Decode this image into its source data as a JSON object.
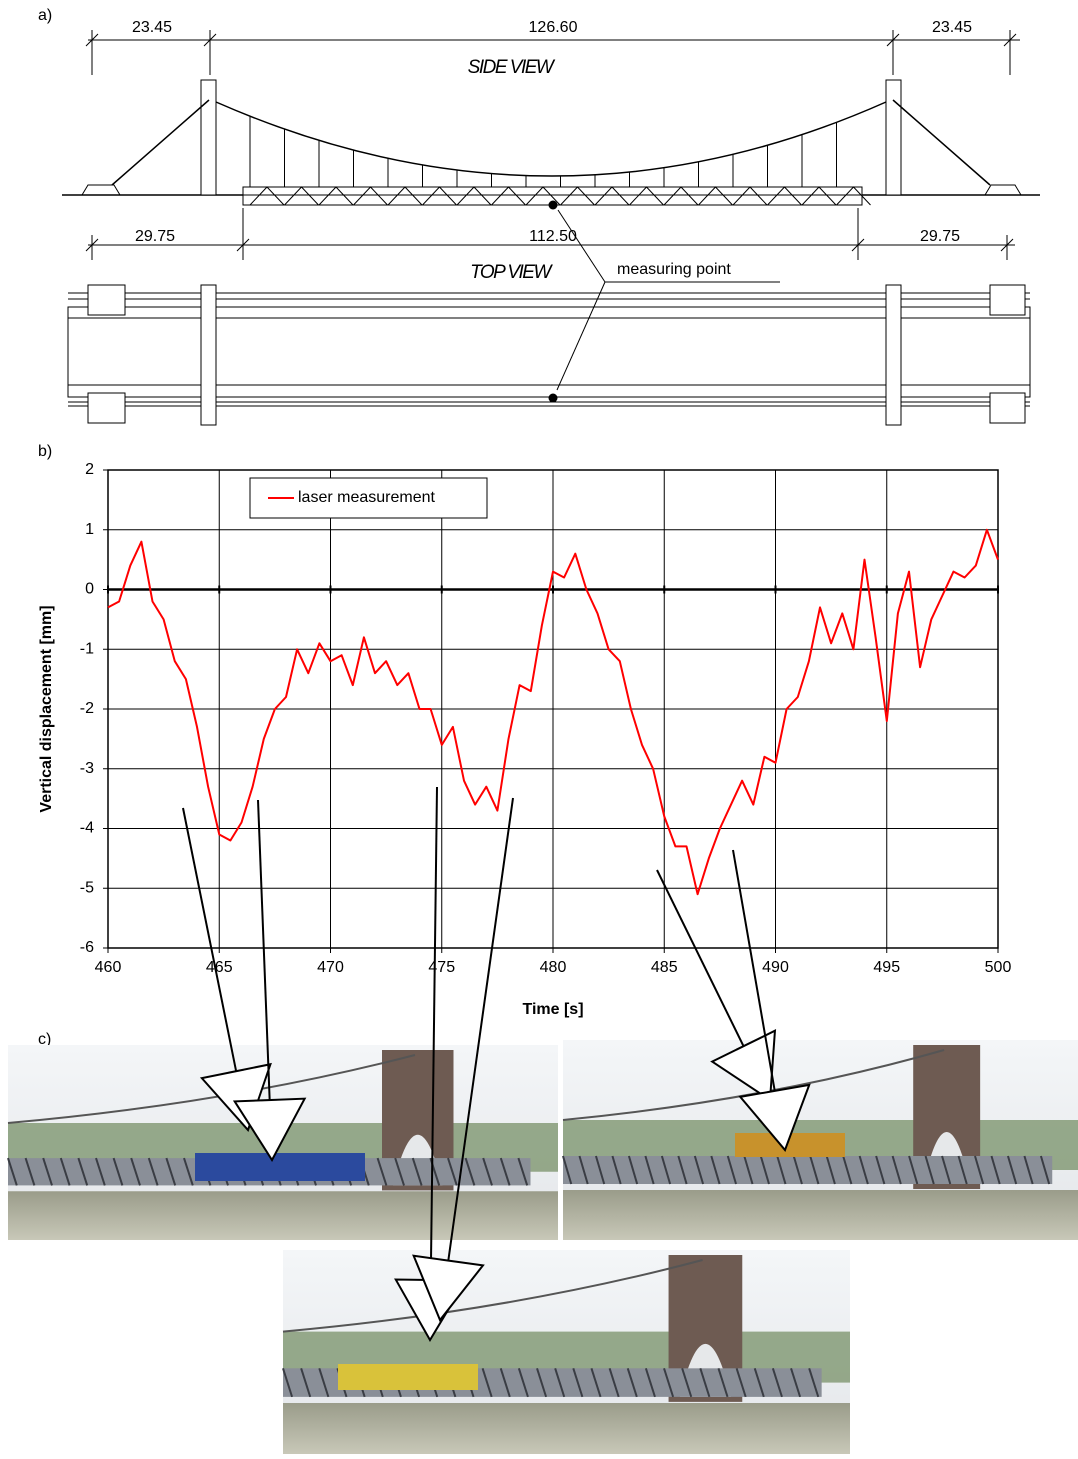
{
  "panel_a": {
    "label": "a)",
    "dimensions_top": [
      "23.45",
      "126.60",
      "23.45"
    ],
    "side_view": "SIDE VIEW",
    "dimensions_deck": [
      "29.75",
      "112.50",
      "29.75"
    ],
    "top_view": "TOP VIEW",
    "annotation": "measuring point"
  },
  "chart_data": {
    "type": "line",
    "label": "b)",
    "xlabel": "Time [s]",
    "ylabel": "Vertical displacement [mm]",
    "xlim": [
      460,
      500
    ],
    "ylim": [
      -6,
      2
    ],
    "xticks": [
      460,
      465,
      470,
      475,
      480,
      485,
      490,
      495,
      500
    ],
    "yticks": [
      -6,
      -5,
      -4,
      -3,
      -2,
      -1,
      0,
      1,
      2
    ],
    "grid": true,
    "legend": "upper-left",
    "series": [
      {
        "name": "laser measurement",
        "color": "#ff0000",
        "x": [
          460,
          460.5,
          461,
          461.5,
          462,
          462.5,
          463,
          463.5,
          464,
          464.5,
          465,
          465.5,
          466,
          466.5,
          467,
          467.5,
          468,
          468.5,
          469,
          469.5,
          470,
          470.5,
          471,
          471.5,
          472,
          472.5,
          473,
          473.5,
          474,
          474.5,
          475,
          475.5,
          476,
          476.5,
          477,
          477.5,
          478,
          478.5,
          479,
          479.5,
          480,
          480.5,
          481,
          481.5,
          482,
          482.5,
          483,
          483.5,
          484,
          484.5,
          485,
          485.5,
          486,
          486.5,
          487,
          487.5,
          488,
          488.5,
          489,
          489.5,
          490,
          490.5,
          491,
          491.5,
          492,
          492.5,
          493,
          493.5,
          494,
          494.5,
          495,
          495.5,
          496,
          496.5,
          497,
          497.5,
          498,
          498.5,
          499,
          499.5,
          500
        ],
        "values": [
          -0.3,
          -0.2,
          0.4,
          0.8,
          -0.2,
          -0.5,
          -1.2,
          -1.5,
          -2.3,
          -3.3,
          -4.1,
          -4.2,
          -3.9,
          -3.3,
          -2.5,
          -2.0,
          -1.8,
          -1.0,
          -1.4,
          -0.9,
          -1.2,
          -1.1,
          -1.6,
          -0.8,
          -1.4,
          -1.2,
          -1.6,
          -1.4,
          -2.0,
          -2.0,
          -2.6,
          -2.3,
          -3.2,
          -3.6,
          -3.3,
          -3.7,
          -2.5,
          -1.6,
          -1.7,
          -0.6,
          0.3,
          0.2,
          0.6,
          0.0,
          -0.4,
          -1.0,
          -1.2,
          -2.0,
          -2.6,
          -3.0,
          -3.8,
          -4.3,
          -4.3,
          -5.1,
          -4.5,
          -4.0,
          -3.6,
          -3.2,
          -3.6,
          -2.8,
          -2.9,
          -2.0,
          -1.8,
          -1.2,
          -0.3,
          -0.9,
          -0.4,
          -1.0,
          0.5,
          -0.8,
          -2.2,
          -0.4,
          0.3,
          -1.3,
          -0.5,
          -0.1,
          0.3,
          0.2,
          0.4,
          1.0,
          0.5
        ]
      }
    ]
  },
  "panel_c": {
    "label": "c)"
  }
}
